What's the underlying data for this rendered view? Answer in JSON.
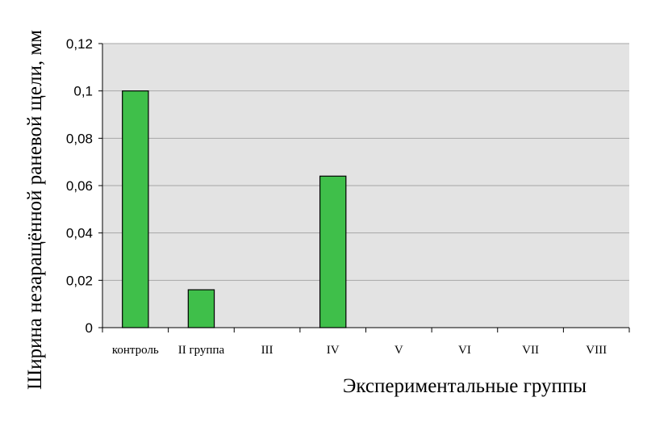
{
  "chart_data": {
    "type": "bar",
    "title": "",
    "xlabel": "Экспериментальные группы",
    "ylabel": "Ширина незаращённой раневой щели, мм",
    "categories": [
      "контроль",
      "II группа",
      "III",
      "IV",
      "V",
      "VI",
      "VII",
      "VIII"
    ],
    "series": [
      {
        "values": [
          0.1,
          0.016,
          0,
          0.064,
          0,
          0,
          0,
          0
        ]
      }
    ],
    "ylim": [
      0,
      0.12
    ],
    "yticks": [
      "0",
      "0,02",
      "0,04",
      "0,06",
      "0,08",
      "0,1",
      "0,12"
    ],
    "grid": true,
    "legend": "none",
    "colors": {
      "bar_fill": "#3fbf4a",
      "bar_stroke": "#000000",
      "plot_background": "#e3e3e3",
      "gridline": "#a6a6a6"
    }
  }
}
